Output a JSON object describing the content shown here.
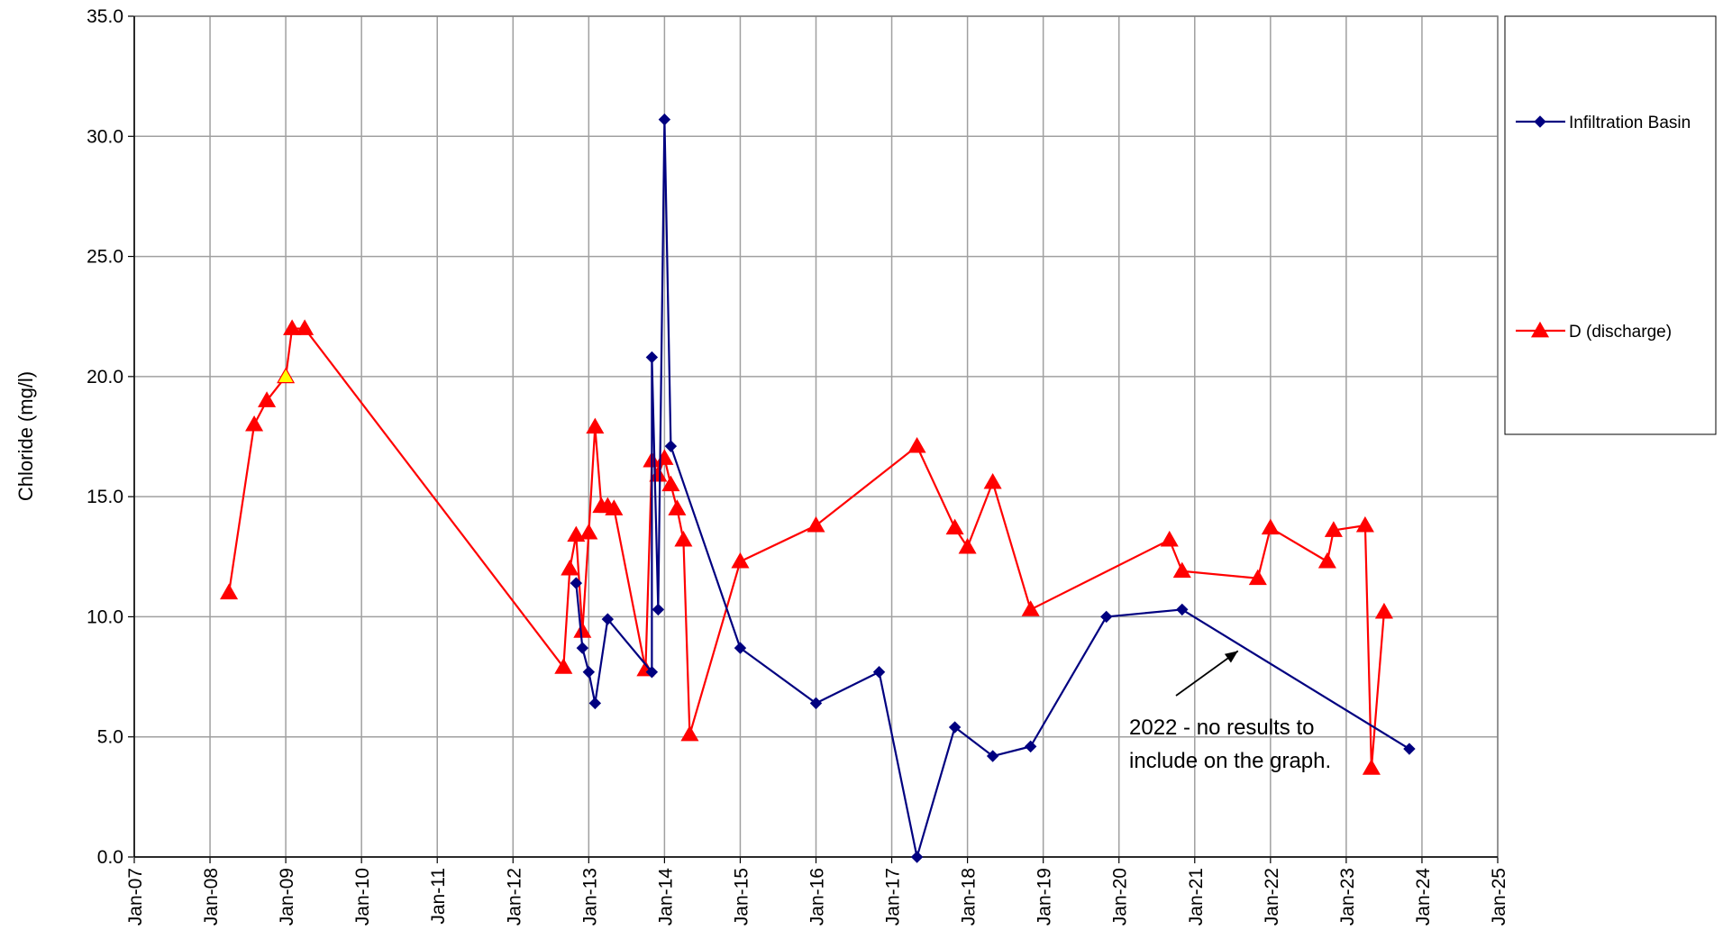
{
  "chart_data": {
    "type": "line",
    "title": "",
    "xlabel": "",
    "ylabel": "Chloride (mg/l)",
    "ylim": [
      0,
      35
    ],
    "y_ticks": [
      "0.0",
      "5.0",
      "10.0",
      "15.0",
      "20.0",
      "25.0",
      "30.0",
      "35.0"
    ],
    "xlim": [
      "2007-01",
      "2025-01"
    ],
    "x_ticks": [
      "Jan-07",
      "Jan-08",
      "Jan-09",
      "Jan-10",
      "Jan-11",
      "Jan-12",
      "Jan-13",
      "Jan-14",
      "Jan-15",
      "Jan-16",
      "Jan-17",
      "Jan-18",
      "Jan-19",
      "Jan-20",
      "Jan-21",
      "Jan-22",
      "Jan-23",
      "Jan-24",
      "Jan-25"
    ],
    "grid": true,
    "legend_position": "right",
    "series": [
      {
        "name": "Infiltration Basin",
        "color": "#000080",
        "marker": "diamond",
        "points": [
          [
            "2012-11",
            11.4
          ],
          [
            "2012-12",
            8.7
          ],
          [
            "2013-01",
            7.7
          ],
          [
            "2013-02",
            6.4
          ],
          [
            "2013-04",
            9.9
          ],
          [
            "2013-11",
            7.7
          ],
          [
            "2013-11",
            20.8
          ],
          [
            "2013-12",
            10.3
          ],
          [
            "2014-01",
            30.7
          ],
          [
            "2014-02",
            17.1
          ],
          [
            "2015-01",
            8.7
          ],
          [
            "2016-01",
            6.4
          ],
          [
            "2016-11",
            7.7
          ],
          [
            "2017-05",
            0.0
          ],
          [
            "2017-11",
            5.4
          ],
          [
            "2018-05",
            4.2
          ],
          [
            "2018-11",
            4.6
          ],
          [
            "2019-11",
            10.0
          ],
          [
            "2020-11",
            10.3
          ],
          [
            "2023-11",
            4.5
          ]
        ]
      },
      {
        "name": "D (discharge)",
        "color": "#ff0000",
        "marker": "triangle",
        "highlight_point": [
          "2009-01",
          20.0
        ],
        "highlight_color": "#ffff00",
        "points": [
          [
            "2008-04",
            11.0
          ],
          [
            "2008-08",
            18.0
          ],
          [
            "2008-10",
            19.0
          ],
          [
            "2009-01",
            20.0
          ],
          [
            "2009-02",
            22.0
          ],
          [
            "2009-04",
            22.0
          ],
          [
            "2012-09",
            7.9
          ],
          [
            "2012-10",
            12.0
          ],
          [
            "2012-11",
            13.4
          ],
          [
            "2012-12",
            9.4
          ],
          [
            "2013-01",
            13.5
          ],
          [
            "2013-02",
            17.9
          ],
          [
            "2013-03",
            14.6
          ],
          [
            "2013-04",
            14.6
          ],
          [
            "2013-05",
            14.5
          ],
          [
            "2013-10",
            7.8
          ],
          [
            "2013-11",
            16.5
          ],
          [
            "2013-12",
            15.9
          ],
          [
            "2014-01",
            16.6
          ],
          [
            "2014-02",
            15.5
          ],
          [
            "2014-03",
            14.5
          ],
          [
            "2014-04",
            13.2
          ],
          [
            "2014-05",
            5.1
          ],
          [
            "2015-01",
            12.3
          ],
          [
            "2016-01",
            13.8
          ],
          [
            "2017-05",
            17.1
          ],
          [
            "2017-11",
            13.7
          ],
          [
            "2018-01",
            12.9
          ],
          [
            "2018-05",
            15.6
          ],
          [
            "2018-11",
            10.3
          ],
          [
            "2020-09",
            13.2
          ],
          [
            "2020-11",
            11.9
          ],
          [
            "2021-11",
            11.6
          ],
          [
            "2022-01",
            13.7
          ],
          [
            "2022-10",
            12.3
          ],
          [
            "2022-11",
            13.6
          ],
          [
            "2023-04",
            13.8
          ],
          [
            "2023-05",
            3.7
          ],
          [
            "2023-07",
            10.2
          ]
        ]
      }
    ],
    "annotations": [
      {
        "text": "2022 - no results to\ninclude on the graph.",
        "arrow_to": [
          "2021-01",
          8.5
        ]
      }
    ]
  }
}
